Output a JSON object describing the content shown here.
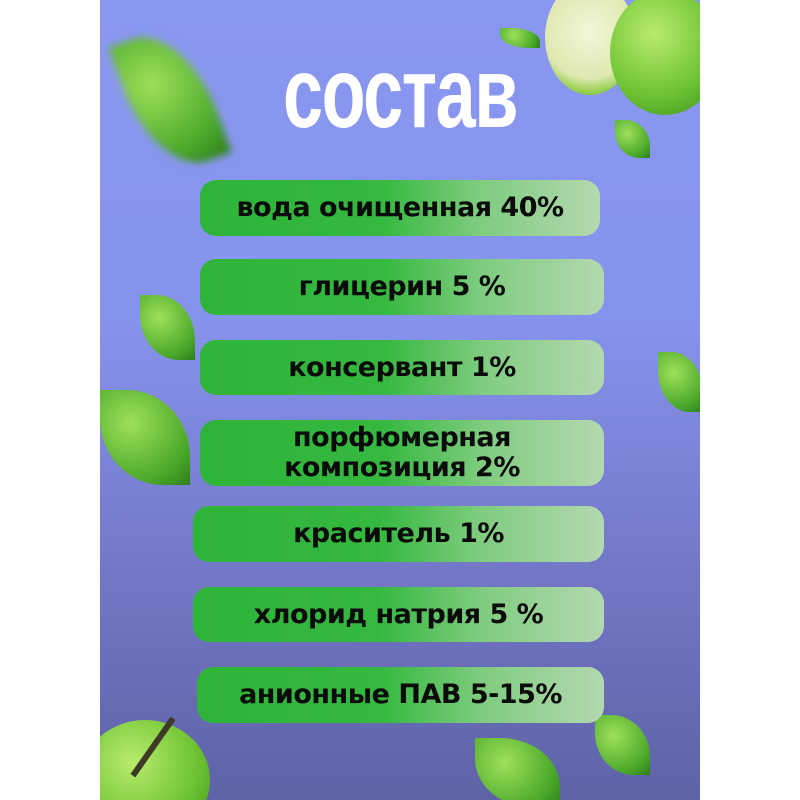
{
  "title": "состав",
  "ingredients": [
    "вода очищенная 40%",
    "глицерин 5 %",
    "консервант 1%",
    "порфюмерная композиция 2%",
    "краситель 1%",
    "хлорид натрия 5 %",
    "анионные ПАВ 5-15%"
  ],
  "colors": {
    "background_top": "#8a97f0",
    "background_bottom": "#5e62a6",
    "pill_green": "#2fb43a",
    "pill_fade": "#b4d8b0",
    "title": "#ffffff"
  }
}
